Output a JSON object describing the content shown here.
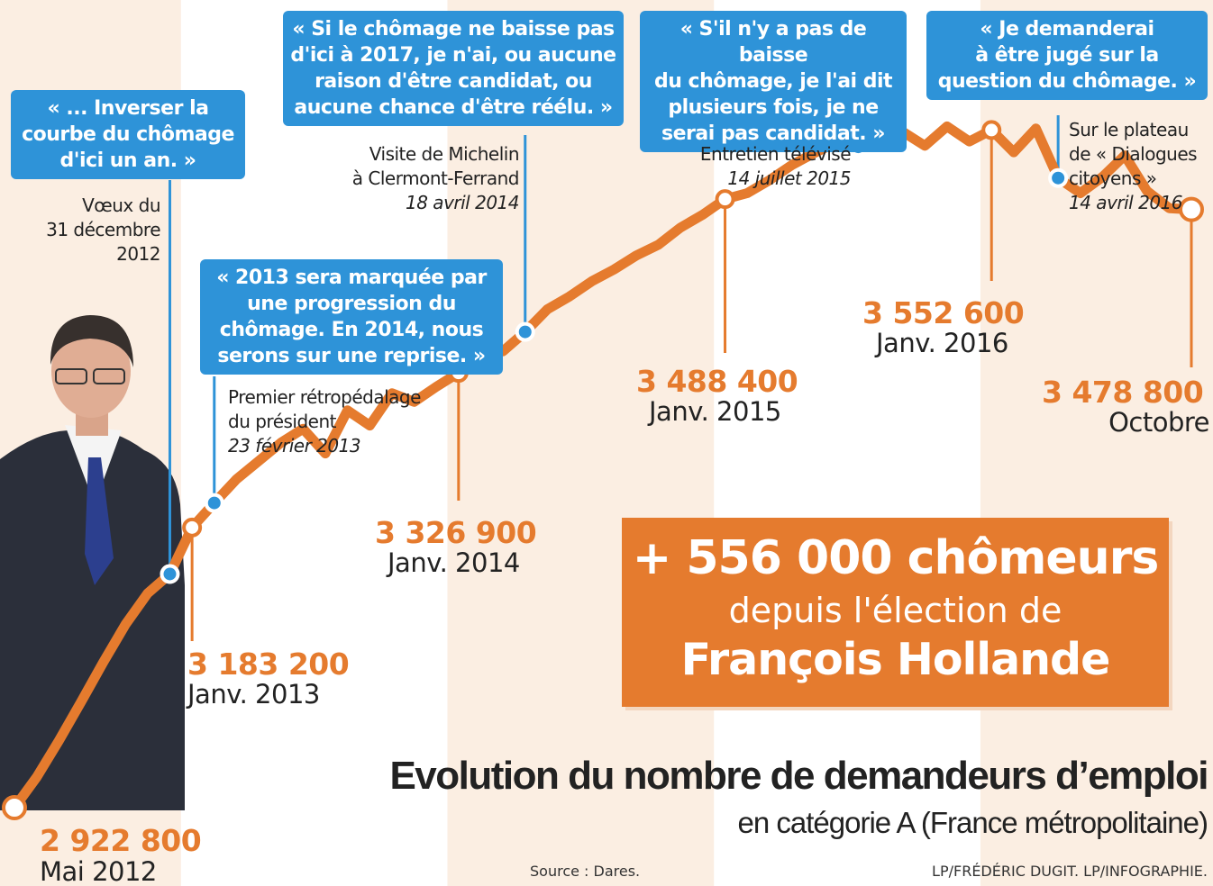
{
  "colors": {
    "line": "#e57b2e",
    "quote_box": "#2e93d8",
    "band": "#fbeee2",
    "text": "#222222"
  },
  "chart_data": {
    "type": "line",
    "title": "Evolution du nombre de demandeurs d’emploi",
    "subtitle": "en catégorie A (France métropolitaine)",
    "xlabel": "",
    "ylabel": "",
    "x": [
      "2012-05",
      "2012-06",
      "2012-07",
      "2012-08",
      "2012-09",
      "2012-10",
      "2012-11",
      "2012-12",
      "2013-01",
      "2013-02",
      "2013-03",
      "2013-04",
      "2013-05",
      "2013-06",
      "2013-07",
      "2013-08",
      "2013-09",
      "2013-10",
      "2013-11",
      "2013-12",
      "2014-01",
      "2014-02",
      "2014-03",
      "2014-04",
      "2014-05",
      "2014-06",
      "2014-07",
      "2014-08",
      "2014-09",
      "2014-10",
      "2014-11",
      "2014-12",
      "2015-01",
      "2015-02",
      "2015-03",
      "2015-04",
      "2015-05",
      "2015-06",
      "2015-07",
      "2015-08",
      "2015-09",
      "2015-10",
      "2015-11",
      "2015-12",
      "2016-01",
      "2016-02",
      "2016-03",
      "2016-04",
      "2016-05",
      "2016-06",
      "2016-07",
      "2016-08",
      "2016-09",
      "2016-10"
    ],
    "series": [
      {
        "values": [
          2922800,
          2951000,
          2985000,
          3021000,
          3058000,
          3093000,
          3122000,
          3140000,
          3183200,
          3206000,
          3228000,
          3245000,
          3262000,
          3275000,
          3252000,
          3292000,
          3278000,
          3308000,
          3300000,
          3314000,
          3326900,
          3349000,
          3347000,
          3365000,
          3386000,
          3398000,
          3412000,
          3423000,
          3436000,
          3446000,
          3462000,
          3474000,
          3488400,
          3494000,
          3506000,
          3520000,
          3531000,
          3541000,
          3537000,
          3552000,
          3551000,
          3538000,
          3556000,
          3542000,
          3552600,
          3532000,
          3554000,
          3508000,
          3494000,
          3509000,
          3529000,
          3496000,
          3480000,
          3478800
        ]
      }
    ],
    "ylim": [
      2850000,
      3640000
    ],
    "grid": false,
    "legend": "none",
    "highlighted_points": [
      {
        "x": "2012-05",
        "value": "2 922 800",
        "label": "Mai 2012"
      },
      {
        "x": "2013-01",
        "value": "3 183 200",
        "label": "Janv. 2013"
      },
      {
        "x": "2014-01",
        "value": "3 326 900",
        "label": "Janv. 2014"
      },
      {
        "x": "2015-01",
        "value": "3 488 400",
        "label": "Janv. 2015"
      },
      {
        "x": "2016-01",
        "value": "3 552 600",
        "label": "Janv. 2016"
      },
      {
        "x": "2016-10",
        "value": "3 478 800",
        "label": "Octobre"
      }
    ],
    "annotations": [
      {
        "x": "2012-12",
        "quote": "« ... Inverser la\ncourbe du chômage\nd'ici un an. »",
        "context": "Vœux du\n31 décembre",
        "date": "2012"
      },
      {
        "x": "2013-02",
        "quote": "« 2013 sera marquée par\nune progression du\nchômage. En 2014, nous\nserons sur une reprise. »",
        "context": "Premier rétropédalage\ndu président",
        "date": "23 février 2013"
      },
      {
        "x": "2014-04",
        "quote": "« Si le chômage ne baisse pas\nd'ici à 2017, je n'ai, ou aucune\nraison d'être candidat, ou\naucune chance d'être réélu. »",
        "context": "Visite de Michelin\nà Clermont-Ferrand",
        "date": "18 avril 2014"
      },
      {
        "x": "2015-07",
        "quote": "« S'il n'y a pas de baisse\ndu chômage, je l'ai dit\nplusieurs fois, je ne\nserai pas candidat. »",
        "context": "Entretien télévisé",
        "date": "14 juillet 2015"
      },
      {
        "x": "2016-04",
        "quote": "« Je demanderai\nà être jugé sur la\nquestion du chômage. »",
        "context": "Sur le plateau\nde « Dialogues\ncitoyens »",
        "date": "14 avril 2016"
      }
    ]
  },
  "summary_box": {
    "line1": "+ 556 000 chômeurs",
    "line2": "depuis l'élection de",
    "line3": "François Hollande"
  },
  "source": "Source : Dares.",
  "credit": "LP/FRÉDÉRIC DUGIT.   LP/INFOGRAPHIE."
}
